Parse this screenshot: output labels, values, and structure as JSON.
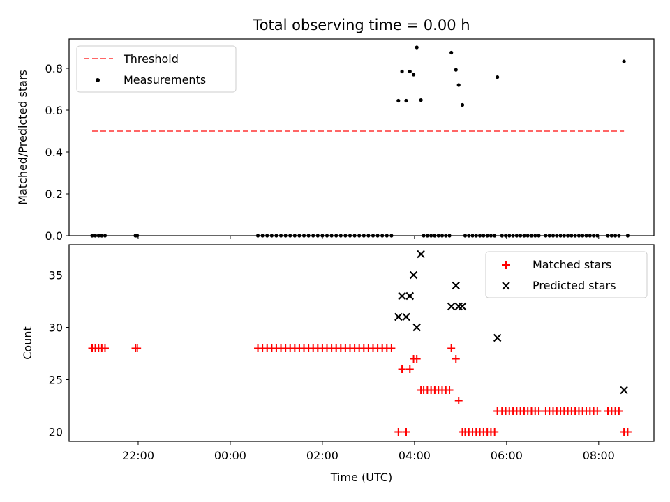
{
  "chart_data": [
    {
      "type": "scatter",
      "title": "Total observing time = 0.00 h",
      "ylabel": "Matched/Predicted stars",
      "xlabel": "",
      "xlim": [
        -3.5,
        9.2
      ],
      "ylim": [
        0.0,
        0.94
      ],
      "yticks": [
        0.0,
        0.2,
        0.4,
        0.6,
        0.8
      ],
      "ytick_labels": [
        "0.0",
        "0.2",
        "0.4",
        "0.6",
        "0.8"
      ],
      "xticks": [
        -2,
        0,
        2,
        4,
        6,
        8
      ],
      "show_xtick_labels": false,
      "legend_position": "upper-left",
      "threshold": {
        "name": "Threshold",
        "y": 0.5,
        "x_range": [
          -3.0,
          8.55
        ],
        "color": "#ff6666",
        "style": "dashed"
      },
      "series": [
        {
          "name": "Measurements",
          "marker": "dot",
          "color": "#000000",
          "points": [
            [
              -3.0,
              0
            ],
            [
              -2.93,
              0
            ],
            [
              -2.86,
              0
            ],
            [
              -2.79,
              0
            ],
            [
              -2.72,
              0
            ],
            [
              -2.06,
              0
            ],
            [
              -2.02,
              0
            ],
            [
              0.6,
              0
            ],
            [
              0.7,
              0
            ],
            [
              0.8,
              0
            ],
            [
              0.9,
              0
            ],
            [
              1.0,
              0
            ],
            [
              1.1,
              0
            ],
            [
              1.2,
              0
            ],
            [
              1.3,
              0
            ],
            [
              1.4,
              0
            ],
            [
              1.5,
              0
            ],
            [
              1.6,
              0
            ],
            [
              1.7,
              0
            ],
            [
              1.8,
              0
            ],
            [
              1.9,
              0
            ],
            [
              2.0,
              0
            ],
            [
              2.1,
              0
            ],
            [
              2.2,
              0
            ],
            [
              2.3,
              0
            ],
            [
              2.4,
              0
            ],
            [
              2.5,
              0
            ],
            [
              2.6,
              0
            ],
            [
              2.7,
              0
            ],
            [
              2.8,
              0
            ],
            [
              2.9,
              0
            ],
            [
              3.0,
              0
            ],
            [
              3.1,
              0
            ],
            [
              3.2,
              0
            ],
            [
              3.3,
              0
            ],
            [
              3.4,
              0
            ],
            [
              3.5,
              0
            ],
            [
              3.65,
              0.645
            ],
            [
              3.73,
              0.785
            ],
            [
              3.82,
              0.645
            ],
            [
              3.9,
              0.785
            ],
            [
              3.98,
              0.77
            ],
            [
              4.05,
              0.9
            ],
            [
              4.14,
              0.648
            ],
            [
              4.2,
              0
            ],
            [
              4.28,
              0
            ],
            [
              4.36,
              0
            ],
            [
              4.44,
              0
            ],
            [
              4.52,
              0
            ],
            [
              4.6,
              0
            ],
            [
              4.68,
              0
            ],
            [
              4.76,
              0
            ],
            [
              4.8,
              0.875
            ],
            [
              4.9,
              0.793
            ],
            [
              4.96,
              0.72
            ],
            [
              5.04,
              0.625
            ],
            [
              5.1,
              0
            ],
            [
              5.18,
              0
            ],
            [
              5.26,
              0
            ],
            [
              5.34,
              0
            ],
            [
              5.42,
              0
            ],
            [
              5.5,
              0
            ],
            [
              5.58,
              0
            ],
            [
              5.66,
              0
            ],
            [
              5.74,
              0
            ],
            [
              5.8,
              0.758
            ],
            [
              5.9,
              0
            ],
            [
              5.98,
              0
            ],
            [
              6.06,
              0
            ],
            [
              6.14,
              0
            ],
            [
              6.22,
              0
            ],
            [
              6.3,
              0
            ],
            [
              6.38,
              0
            ],
            [
              6.46,
              0
            ],
            [
              6.54,
              0
            ],
            [
              6.62,
              0
            ],
            [
              6.7,
              0
            ],
            [
              6.85,
              0
            ],
            [
              6.93,
              0
            ],
            [
              7.01,
              0
            ],
            [
              7.09,
              0
            ],
            [
              7.17,
              0
            ],
            [
              7.25,
              0
            ],
            [
              7.33,
              0
            ],
            [
              7.41,
              0
            ],
            [
              7.49,
              0
            ],
            [
              7.57,
              0
            ],
            [
              7.65,
              0
            ],
            [
              7.73,
              0
            ],
            [
              7.81,
              0
            ],
            [
              7.89,
              0
            ],
            [
              7.97,
              0
            ],
            [
              8.2,
              0
            ],
            [
              8.28,
              0
            ],
            [
              8.36,
              0
            ],
            [
              8.44,
              0
            ],
            [
              8.55,
              0.833
            ],
            [
              8.63,
              0
            ]
          ]
        }
      ]
    },
    {
      "type": "scatter",
      "title": "",
      "ylabel": "Count",
      "xlabel": "Time (UTC)",
      "xlim": [
        -3.5,
        9.2
      ],
      "ylim": [
        19.1,
        37.9
      ],
      "yticks": [
        20,
        25,
        30,
        35
      ],
      "ytick_labels": [
        "20",
        "25",
        "30",
        "35"
      ],
      "xticks": [
        -2,
        0,
        2,
        4,
        6,
        8
      ],
      "xtick_labels": [
        "22:00",
        "00:00",
        "02:00",
        "04:00",
        "06:00",
        "08:00"
      ],
      "show_xtick_labels": true,
      "legend_position": "upper-right",
      "series": [
        {
          "name": "Matched stars",
          "marker": "plus",
          "color": "#ff0000",
          "points": [
            [
              -3.0,
              28
            ],
            [
              -2.93,
              28
            ],
            [
              -2.86,
              28
            ],
            [
              -2.79,
              28
            ],
            [
              -2.72,
              28
            ],
            [
              -2.06,
              28
            ],
            [
              -2.02,
              28
            ],
            [
              0.6,
              28
            ],
            [
              0.7,
              28
            ],
            [
              0.8,
              28
            ],
            [
              0.9,
              28
            ],
            [
              1.0,
              28
            ],
            [
              1.1,
              28
            ],
            [
              1.2,
              28
            ],
            [
              1.3,
              28
            ],
            [
              1.4,
              28
            ],
            [
              1.5,
              28
            ],
            [
              1.6,
              28
            ],
            [
              1.7,
              28
            ],
            [
              1.8,
              28
            ],
            [
              1.9,
              28
            ],
            [
              2.0,
              28
            ],
            [
              2.1,
              28
            ],
            [
              2.2,
              28
            ],
            [
              2.3,
              28
            ],
            [
              2.4,
              28
            ],
            [
              2.5,
              28
            ],
            [
              2.6,
              28
            ],
            [
              2.7,
              28
            ],
            [
              2.8,
              28
            ],
            [
              2.9,
              28
            ],
            [
              3.0,
              28
            ],
            [
              3.1,
              28
            ],
            [
              3.2,
              28
            ],
            [
              3.3,
              28
            ],
            [
              3.4,
              28
            ],
            [
              3.5,
              28
            ],
            [
              3.65,
              20
            ],
            [
              3.73,
              26
            ],
            [
              3.82,
              20
            ],
            [
              3.9,
              26
            ],
            [
              3.98,
              27
            ],
            [
              4.05,
              27
            ],
            [
              4.14,
              24
            ],
            [
              4.2,
              24
            ],
            [
              4.28,
              24
            ],
            [
              4.36,
              24
            ],
            [
              4.44,
              24
            ],
            [
              4.52,
              24
            ],
            [
              4.6,
              24
            ],
            [
              4.68,
              24
            ],
            [
              4.76,
              24
            ],
            [
              4.8,
              28
            ],
            [
              4.9,
              27
            ],
            [
              4.96,
              23
            ],
            [
              5.04,
              20
            ],
            [
              5.1,
              20
            ],
            [
              5.18,
              20
            ],
            [
              5.26,
              20
            ],
            [
              5.34,
              20
            ],
            [
              5.42,
              20
            ],
            [
              5.5,
              20
            ],
            [
              5.58,
              20
            ],
            [
              5.66,
              20
            ],
            [
              5.74,
              20
            ],
            [
              5.8,
              22
            ],
            [
              5.9,
              22
            ],
            [
              5.98,
              22
            ],
            [
              6.06,
              22
            ],
            [
              6.14,
              22
            ],
            [
              6.22,
              22
            ],
            [
              6.3,
              22
            ],
            [
              6.38,
              22
            ],
            [
              6.46,
              22
            ],
            [
              6.54,
              22
            ],
            [
              6.62,
              22
            ],
            [
              6.7,
              22
            ],
            [
              6.85,
              22
            ],
            [
              6.93,
              22
            ],
            [
              7.01,
              22
            ],
            [
              7.09,
              22
            ],
            [
              7.17,
              22
            ],
            [
              7.25,
              22
            ],
            [
              7.33,
              22
            ],
            [
              7.41,
              22
            ],
            [
              7.49,
              22
            ],
            [
              7.57,
              22
            ],
            [
              7.65,
              22
            ],
            [
              7.73,
              22
            ],
            [
              7.81,
              22
            ],
            [
              7.89,
              22
            ],
            [
              7.97,
              22
            ],
            [
              8.2,
              22
            ],
            [
              8.28,
              22
            ],
            [
              8.36,
              22
            ],
            [
              8.44,
              22
            ],
            [
              8.55,
              20
            ],
            [
              8.63,
              20
            ]
          ]
        },
        {
          "name": "Predicted stars",
          "marker": "x",
          "color": "#000000",
          "points": [
            [
              3.65,
              31
            ],
            [
              3.73,
              33
            ],
            [
              3.82,
              31
            ],
            [
              3.9,
              33
            ],
            [
              3.98,
              35
            ],
            [
              4.05,
              30
            ],
            [
              4.14,
              37
            ],
            [
              4.8,
              32
            ],
            [
              4.9,
              34
            ],
            [
              4.96,
              32
            ],
            [
              5.04,
              32
            ],
            [
              5.8,
              29
            ],
            [
              8.55,
              24
            ]
          ]
        }
      ]
    }
  ]
}
